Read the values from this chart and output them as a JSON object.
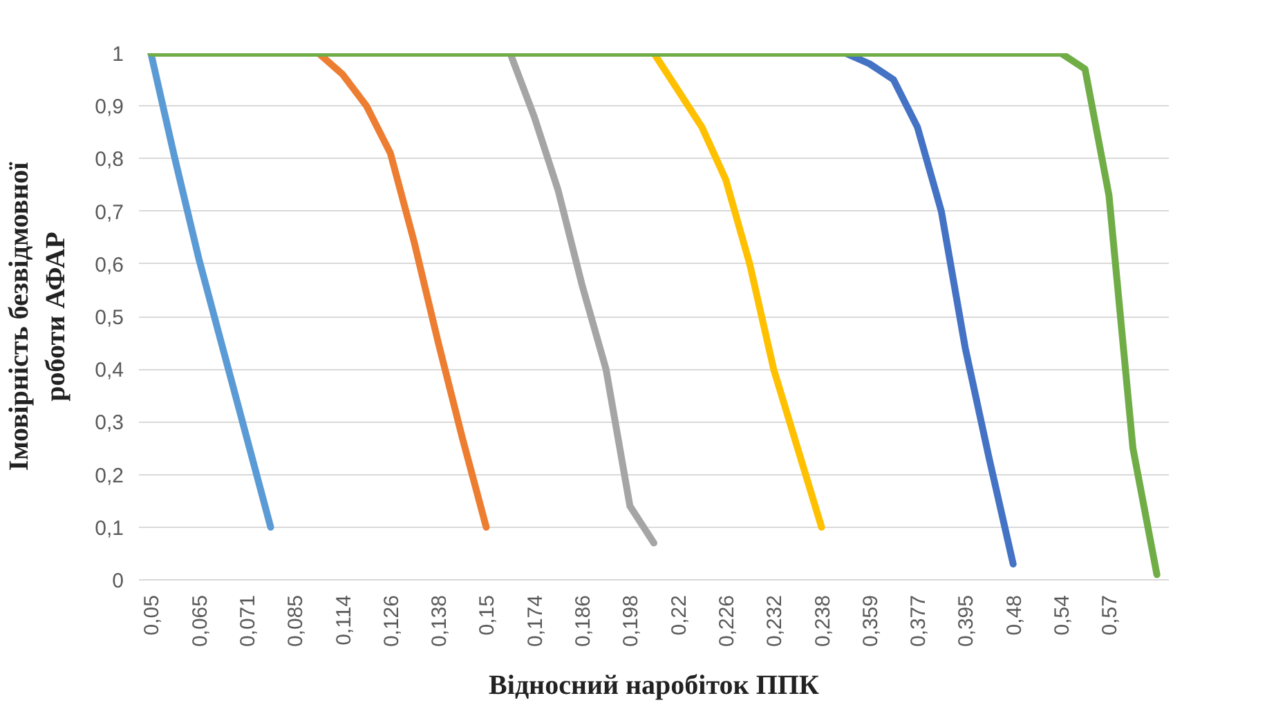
{
  "chart_data": {
    "type": "line",
    "xlabel": "Відносний наробіток ППК",
    "ylabel": "Імовірність безвідмовної роботи АФАР",
    "categories": [
      "0,05",
      null,
      "0,065",
      null,
      "0,071",
      null,
      "0,085",
      null,
      "0,114",
      null,
      "0,126",
      null,
      "0,138",
      null,
      "0,15",
      null,
      "0,174",
      null,
      "0,186",
      null,
      "0,198",
      null,
      "0,22",
      null,
      "0,226",
      null,
      "0,232",
      null,
      "0,238",
      null,
      "0,359",
      null,
      "0,377",
      null,
      "0,395",
      null,
      "0,48",
      null,
      "0,54",
      null,
      "0,57",
      null,
      null
    ],
    "series": [
      {
        "color": "#5b9bd5",
        "values": [
          1.0,
          0.8,
          0.61,
          0.44,
          0.27,
          0.1,
          null,
          null,
          null,
          null,
          null,
          null,
          null,
          null,
          null,
          null,
          null,
          null,
          null,
          null,
          null,
          null,
          null,
          null,
          null,
          null,
          null,
          null,
          null,
          null,
          null,
          null,
          null,
          null,
          null,
          null,
          null,
          null,
          null,
          null,
          null,
          null,
          null
        ]
      },
      {
        "color": "#ed7d31",
        "values": [
          null,
          null,
          null,
          null,
          null,
          null,
          null,
          1.0,
          0.96,
          0.9,
          0.81,
          0.64,
          0.45,
          0.27,
          0.1,
          null,
          null,
          null,
          null,
          null,
          null,
          null,
          null,
          null,
          null,
          null,
          null,
          null,
          null,
          null,
          null,
          null,
          null,
          null,
          null,
          null,
          null,
          null,
          null,
          null,
          null,
          null,
          null
        ]
      },
      {
        "color": "#a5a5a5",
        "values": [
          null,
          null,
          null,
          null,
          null,
          null,
          null,
          null,
          null,
          null,
          null,
          null,
          null,
          null,
          null,
          1.0,
          0.88,
          0.74,
          0.56,
          0.4,
          0.14,
          0.07,
          null,
          null,
          null,
          null,
          null,
          null,
          null,
          null,
          null,
          null,
          null,
          null,
          null,
          null,
          null,
          null,
          null,
          null,
          null,
          null,
          null
        ]
      },
      {
        "color": "#ffc000",
        "values": [
          null,
          null,
          null,
          null,
          null,
          null,
          null,
          null,
          null,
          null,
          null,
          null,
          null,
          null,
          null,
          null,
          null,
          null,
          null,
          null,
          null,
          1.0,
          0.93,
          0.86,
          0.76,
          0.6,
          0.4,
          0.25,
          0.1,
          null,
          null,
          null,
          null,
          null,
          null,
          null,
          null,
          null,
          null,
          null,
          null,
          null,
          null
        ]
      },
      {
        "color": "#4472c4",
        "values": [
          null,
          null,
          null,
          null,
          null,
          null,
          null,
          null,
          null,
          null,
          null,
          null,
          null,
          null,
          null,
          null,
          null,
          null,
          null,
          null,
          null,
          null,
          null,
          null,
          null,
          null,
          null,
          null,
          null,
          1.0,
          0.98,
          0.95,
          0.86,
          0.7,
          0.44,
          0.23,
          0.03,
          null,
          null,
          null,
          null,
          null,
          null
        ]
      },
      {
        "color": "#70ad47",
        "values": [
          1,
          1,
          1,
          1,
          1,
          1,
          1,
          1,
          1,
          1,
          1,
          1,
          1,
          1,
          1,
          1,
          1,
          1,
          1,
          1,
          1,
          1,
          1,
          1,
          1,
          1,
          1,
          1,
          1,
          1,
          1,
          1,
          1,
          1,
          1,
          1,
          1,
          1,
          1.0,
          0.97,
          0.73,
          0.25,
          0.01
        ]
      }
    ],
    "ylim": [
      0,
      1
    ],
    "yticks": [
      {
        "value": 0,
        "label": "0"
      },
      {
        "value": 0.1,
        "label": "0,1"
      },
      {
        "value": 0.2,
        "label": "0,2"
      },
      {
        "value": 0.3,
        "label": "0,3"
      },
      {
        "value": 0.4,
        "label": "0,4"
      },
      {
        "value": 0.5,
        "label": "0,5"
      },
      {
        "value": 0.6,
        "label": "0,6"
      },
      {
        "value": 0.7,
        "label": "0,7"
      },
      {
        "value": 0.8,
        "label": "0,8"
      },
      {
        "value": 0.9,
        "label": "0,9"
      },
      {
        "value": 1,
        "label": "1"
      }
    ],
    "grid": "y",
    "line_style": "solid",
    "marker": "none"
  }
}
